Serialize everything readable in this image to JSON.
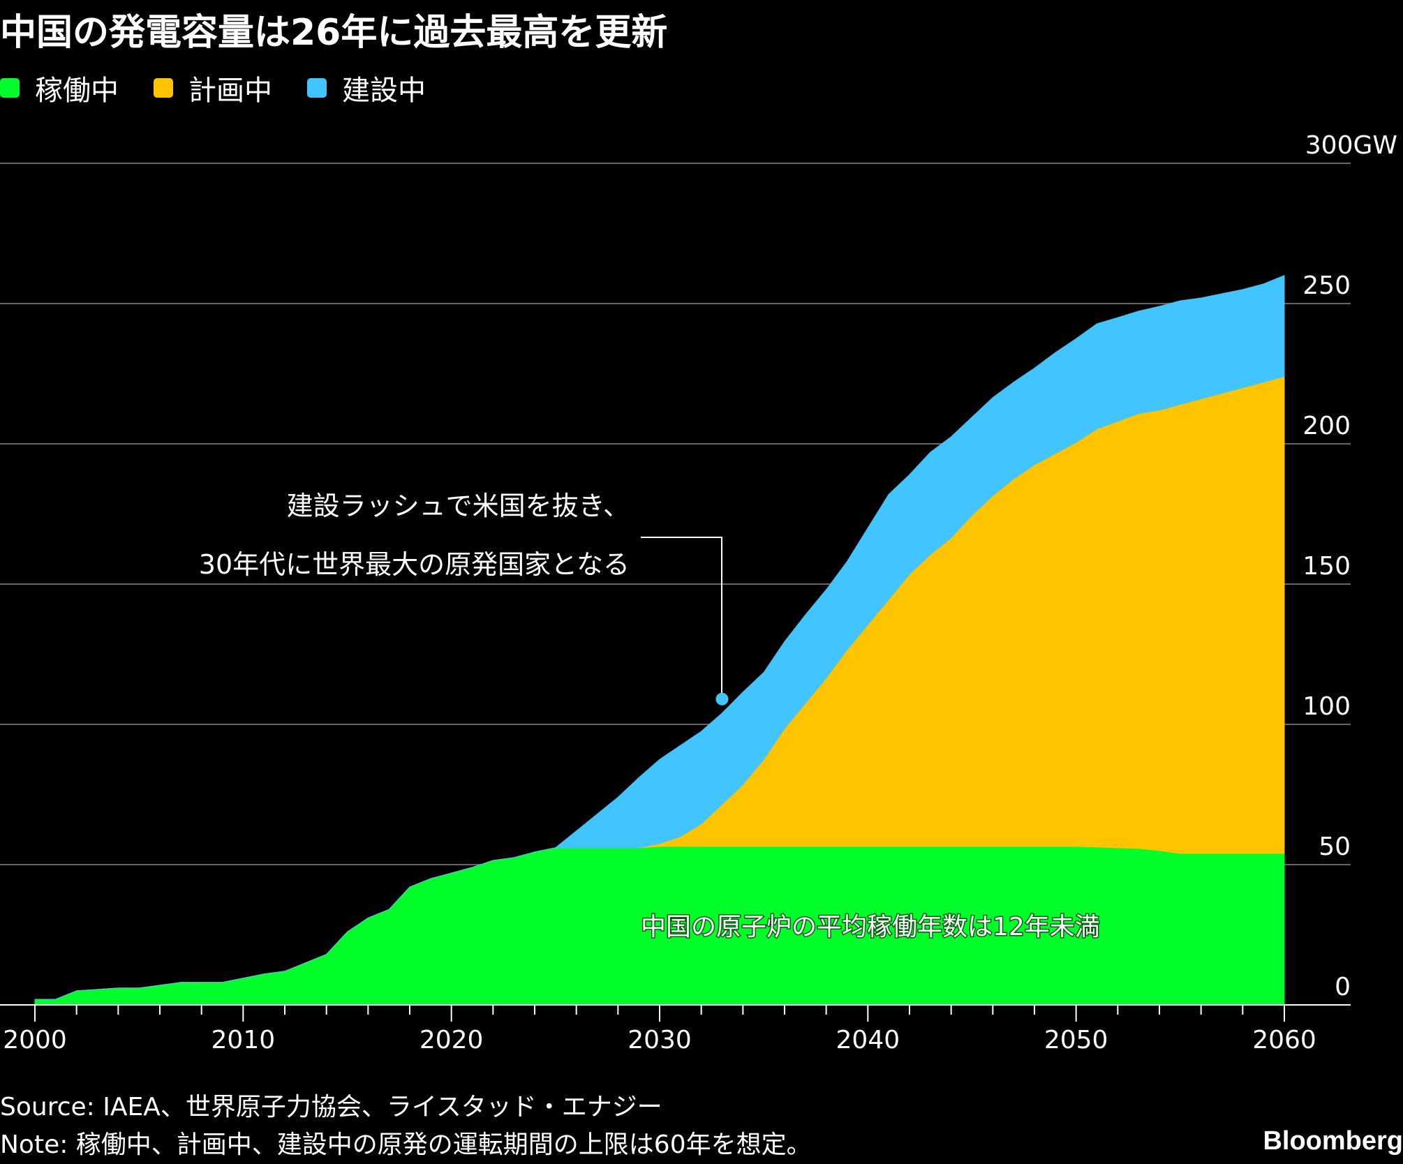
{
  "title": "中国の発電容量は26年に過去最高を更新",
  "legend": [
    {
      "label": "稼働中",
      "color": "#00ff2a"
    },
    {
      "label": "計画中",
      "color": "#ffc400"
    },
    {
      "label": "建設中",
      "color": "#42c4ff"
    }
  ],
  "chart_data": {
    "type": "area",
    "stacked": true,
    "x": [
      2000,
      2001,
      2002,
      2003,
      2004,
      2005,
      2006,
      2007,
      2008,
      2009,
      2010,
      2011,
      2012,
      2013,
      2014,
      2015,
      2016,
      2017,
      2018,
      2019,
      2020,
      2021,
      2022,
      2023,
      2024,
      2025,
      2026,
      2027,
      2028,
      2029,
      2030,
      2031,
      2032,
      2033,
      2034,
      2035,
      2036,
      2037,
      2038,
      2039,
      2040,
      2041,
      2042,
      2043,
      2044,
      2045,
      2046,
      2047,
      2048,
      2049,
      2050,
      2051,
      2052,
      2053,
      2054,
      2055,
      2056,
      2057,
      2058,
      2059,
      2060
    ],
    "series": [
      {
        "name": "稼働中",
        "color": "#00ff2a",
        "values": [
          2,
          2,
          5,
          5.5,
          6,
          6,
          7,
          8,
          8,
          8,
          9.5,
          11,
          12,
          15,
          18,
          26,
          31,
          34,
          42,
          45,
          47,
          49,
          51.5,
          52.5,
          54.5,
          56,
          56,
          56,
          56,
          56,
          56.5,
          56.5,
          56.5,
          56.5,
          56.5,
          56.5,
          56.5,
          56.5,
          56.5,
          56.5,
          56.5,
          56.5,
          56.5,
          56.5,
          56.5,
          56.5,
          56.5,
          56.5,
          56.5,
          56.5,
          56.5,
          56.3,
          56,
          55.8,
          55,
          54,
          54,
          54,
          54,
          54,
          54
        ]
      },
      {
        "name": "計画中",
        "color": "#ffc400",
        "values": [
          0,
          0,
          0,
          0,
          0,
          0,
          0,
          0,
          0,
          0,
          0,
          0,
          0,
          0,
          0,
          0,
          0,
          0,
          0,
          0,
          0,
          0,
          0,
          0,
          0,
          0,
          0,
          0,
          0,
          0,
          1,
          3.5,
          8,
          15,
          22,
          31,
          42,
          51,
          60,
          70,
          79,
          88,
          97,
          104,
          110,
          118,
          125,
          131,
          136,
          140,
          144,
          149,
          152,
          155,
          157,
          160,
          162,
          164,
          166,
          168,
          170
        ]
      },
      {
        "name": "建設中",
        "color": "#42c4ff",
        "values": [
          0,
          0,
          0,
          0,
          0,
          0,
          0,
          0,
          0,
          0,
          0,
          0,
          0,
          0,
          0,
          0,
          0,
          0,
          0,
          0,
          0,
          0,
          0,
          0,
          0,
          0,
          6,
          12,
          18,
          25,
          30,
          32.5,
          33,
          32.5,
          33,
          31,
          31,
          31.5,
          31.5,
          31.5,
          34.5,
          37.5,
          35.5,
          36.5,
          36,
          35,
          35,
          34.5,
          34.5,
          36,
          37,
          37.5,
          37,
          36.5,
          37,
          37,
          36,
          35.5,
          35,
          35,
          36
        ]
      }
    ],
    "y_axis": {
      "min": 0,
      "max": 300,
      "ticks": [
        0,
        50,
        100,
        150,
        200,
        250,
        300
      ],
      "unit": "GW",
      "position": "right"
    },
    "x_axis": {
      "ticks": [
        2000,
        2010,
        2020,
        2030,
        2040,
        2050,
        2060
      ]
    },
    "grid": true,
    "legend_placement": "top-left",
    "annotations": [
      {
        "lines": [
          "建設ラッシュで米国を抜き、",
          "30年代に世界最大の原発国家となる"
        ],
        "target_year": 2033,
        "target_value": 110
      },
      {
        "text": "中国の原子炉の平均稼働年数は12年未満"
      }
    ]
  },
  "footer": {
    "source": "Source: IAEA、世界原子力協会、ライスタッド・エナジー",
    "note": "Note: 稼働中、計画中、建設中の原発の運転期間の上限は60年を想定。"
  },
  "brand": "Bloomberg"
}
